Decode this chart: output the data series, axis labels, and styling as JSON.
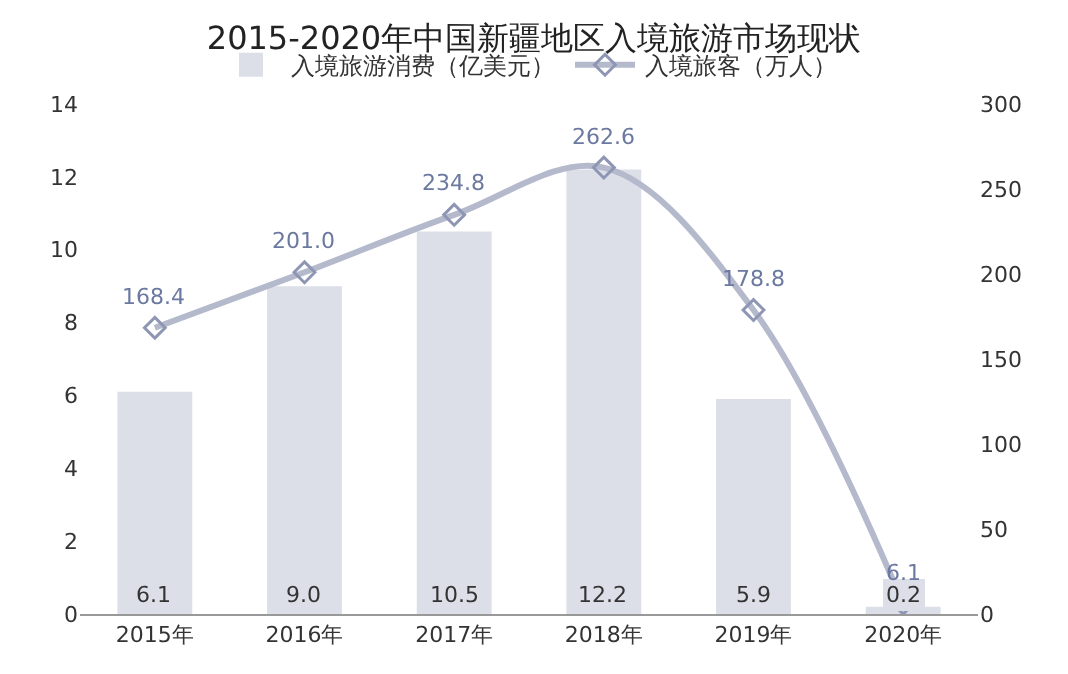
{
  "chart_data": {
    "type": "bar",
    "title": "2015-2020年中国新疆地区入境旅游市场现状",
    "categories": [
      "2015年",
      "2016年",
      "2017年",
      "2018年",
      "2019年",
      "2020年"
    ],
    "series": [
      {
        "name": "入境旅游消费（亿美元）",
        "color": "#dcdfe8",
        "values": [
          6.1,
          9.0,
          10.5,
          12.2,
          5.9,
          0.2
        ],
        "value_labels": [
          "6.1",
          "9.0",
          "10.5",
          "12.2",
          "5.9",
          "0.2"
        ]
      },
      {
        "name": "入境旅客（万人）",
        "type": "line",
        "axis": "y2",
        "color": "#b4b9cc",
        "values": [
          168.4,
          201.0,
          234.8,
          262.6,
          178.8,
          6.1
        ],
        "value_labels": [
          "168.4",
          "201.0",
          "234.8",
          "262.6",
          "178.8",
          "6.1"
        ]
      }
    ],
    "ylim": [
      0,
      14
    ],
    "yticks": [
      0,
      2,
      4,
      6,
      8,
      10,
      12,
      14
    ],
    "y2lim": [
      0,
      300
    ],
    "y2ticks": [
      0,
      50,
      100,
      150,
      200,
      250,
      300
    ],
    "data_labels": true,
    "legend": "top",
    "grid": false,
    "marker": "diamond",
    "line_style": "solid"
  }
}
